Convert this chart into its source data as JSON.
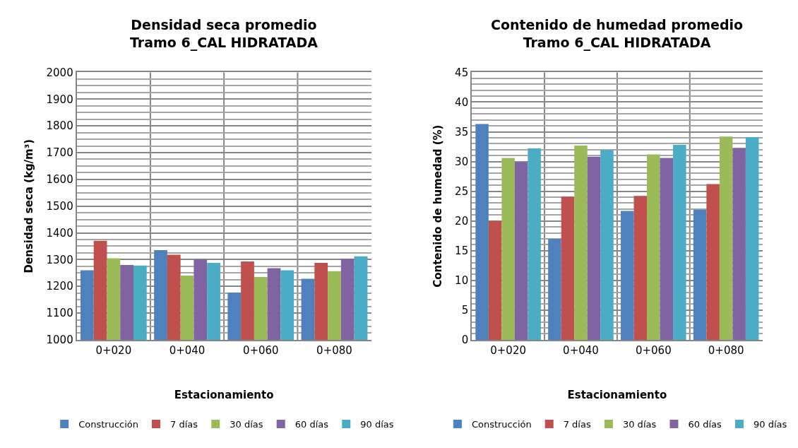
{
  "chart_data": [
    {
      "type": "bar",
      "title": "Densidad seca promedio\nTramo 6_CAL HIDRATADA",
      "xlabel": "Estacionamiento",
      "ylabel": "Densidad seca (kg/m³)",
      "categories": [
        "0+020",
        "0+040",
        "0+060",
        "0+080"
      ],
      "series": [
        {
          "name": "Construcción",
          "color": "#4f81bd",
          "values": [
            1260,
            1335,
            1177,
            1228
          ]
        },
        {
          "name": "7 días",
          "color": "#c0504d",
          "values": [
            1370,
            1318,
            1293,
            1288
          ]
        },
        {
          "name": "30 días",
          "color": "#9bbb59",
          "values": [
            1305,
            1240,
            1235,
            1257
          ]
        },
        {
          "name": "60 días",
          "color": "#8064a2",
          "values": [
            1280,
            1300,
            1268,
            1303
          ]
        },
        {
          "name": "90 días",
          "color": "#4bacc6",
          "values": [
            1278,
            1288,
            1260,
            1312
          ]
        }
      ],
      "ylim": [
        1000,
        2000
      ],
      "yticks": [
        1000,
        1100,
        1200,
        1300,
        1400,
        1500,
        1600,
        1700,
        1800,
        1900,
        2000
      ],
      "grid": true,
      "legend": "bottom"
    },
    {
      "type": "bar",
      "title": "Contenido de humedad promedio\nTramo 6_CAL HIDRATADA",
      "xlabel": "Estacionamiento",
      "ylabel": "Contenido de humedad (%)",
      "categories": [
        "0+020",
        "0+040",
        "0+060",
        "0+080"
      ],
      "series": [
        {
          "name": "Construcción",
          "color": "#4f81bd",
          "values": [
            36.3,
            17.0,
            21.7,
            21.9
          ]
        },
        {
          "name": "7 días",
          "color": "#c0504d",
          "values": [
            20.0,
            24.1,
            24.2,
            26.2
          ]
        },
        {
          "name": "30 días",
          "color": "#9bbb59",
          "values": [
            30.6,
            32.7,
            31.2,
            34.2
          ]
        },
        {
          "name": "60 días",
          "color": "#8064a2",
          "values": [
            29.9,
            30.8,
            30.6,
            32.3
          ]
        },
        {
          "name": "90 días",
          "color": "#4bacc6",
          "values": [
            32.2,
            31.9,
            32.8,
            34.1
          ]
        }
      ],
      "ylim": [
        0,
        45
      ],
      "yticks": [
        0,
        5,
        10,
        15,
        20,
        25,
        30,
        35,
        40,
        45
      ],
      "grid": true,
      "legend": "bottom"
    }
  ]
}
